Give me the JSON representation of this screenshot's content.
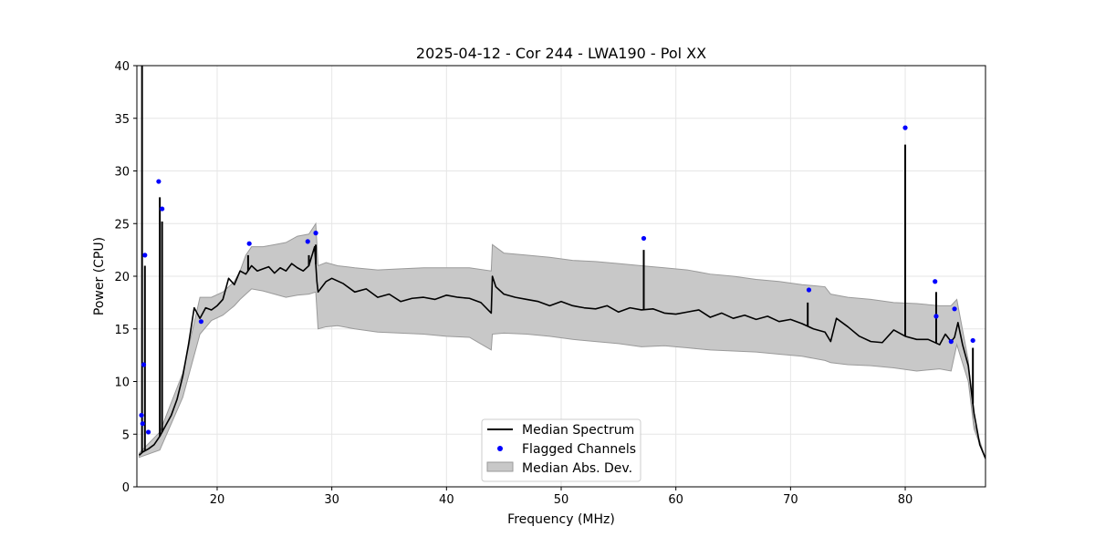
{
  "chart_data": {
    "type": "line",
    "title": "2025-04-12 - Cor 244 - LWA190 - Pol XX",
    "xlabel": "Frequency (MHz)",
    "ylabel": "Power (CPU)",
    "xlim": [
      13,
      87
    ],
    "ylim": [
      0,
      40
    ],
    "xticks": [
      20,
      30,
      40,
      50,
      60,
      70,
      80
    ],
    "yticks": [
      0,
      5,
      10,
      15,
      20,
      25,
      30,
      35,
      40
    ],
    "grid": true,
    "legend_position": "lower-center",
    "colors": {
      "median": "#000000",
      "flagged": "#0000ff",
      "mad_fill": "#c8c8c8",
      "mad_edge": "#9a9a9a"
    },
    "legend": [
      {
        "label": "Median Spectrum",
        "kind": "line"
      },
      {
        "label": "Flagged Channels",
        "kind": "marker"
      },
      {
        "label": "Median Abs. Dev.",
        "kind": "patch"
      }
    ],
    "series": [
      {
        "name": "Median Spectrum",
        "x": [
          13.2,
          13.5,
          14.0,
          14.5,
          15.0,
          15.5,
          16.0,
          16.5,
          17.0,
          17.5,
          18.0,
          18.5,
          19.0,
          19.5,
          20.0,
          20.5,
          21.0,
          21.5,
          22.0,
          22.5,
          23.0,
          23.5,
          24.0,
          24.5,
          25.0,
          25.5,
          26.0,
          26.5,
          27.0,
          27.5,
          28.0,
          28.5,
          28.7,
          28.8,
          29.5,
          30.0,
          31.0,
          32.0,
          33.0,
          34.0,
          35.0,
          36.0,
          37.0,
          38.0,
          39.0,
          40.0,
          41.0,
          42.0,
          43.0,
          43.9,
          44.0,
          44.3,
          45.0,
          46.0,
          47.0,
          48.0,
          49.0,
          50.0,
          51.0,
          52.0,
          53.0,
          54.0,
          55.0,
          56.0,
          57.0,
          58.0,
          59.0,
          60.0,
          61.0,
          62.0,
          63.0,
          64.0,
          65.0,
          66.0,
          67.0,
          68.0,
          69.0,
          70.0,
          71.0,
          72.0,
          73.0,
          73.5,
          74.0,
          75.0,
          76.0,
          77.0,
          78.0,
          79.0,
          80.0,
          81.0,
          82.0,
          83.0,
          83.5,
          84.0,
          84.3,
          84.6,
          85.0,
          85.5,
          86.0,
          86.5,
          87.0
        ],
        "values": [
          3.0,
          3.3,
          3.6,
          4.0,
          4.8,
          5.8,
          6.8,
          8.3,
          10.5,
          13.5,
          17.0,
          16.0,
          17.0,
          16.8,
          17.2,
          17.8,
          19.8,
          19.2,
          20.5,
          20.2,
          21.0,
          20.5,
          20.7,
          20.9,
          20.3,
          20.8,
          20.5,
          21.2,
          20.8,
          20.5,
          21.0,
          22.8,
          19.5,
          18.5,
          19.5,
          19.8,
          19.3,
          18.5,
          18.8,
          18.0,
          18.3,
          17.6,
          17.9,
          18.0,
          17.8,
          18.2,
          18.0,
          17.9,
          17.5,
          16.5,
          20.0,
          19.0,
          18.3,
          18.0,
          17.8,
          17.6,
          17.2,
          17.6,
          17.2,
          17.0,
          16.9,
          17.2,
          16.6,
          17.0,
          16.8,
          16.9,
          16.5,
          16.4,
          16.6,
          16.8,
          16.1,
          16.5,
          16.0,
          16.3,
          15.9,
          16.2,
          15.7,
          15.9,
          15.5,
          15.0,
          14.7,
          13.8,
          16.0,
          15.2,
          14.3,
          13.8,
          13.7,
          14.9,
          14.3,
          14.0,
          14.0,
          13.5,
          14.5,
          13.8,
          14.2,
          15.6,
          13.5,
          11.5,
          7.0,
          4.0,
          2.7
        ],
        "spikes": [
          [
            13.45,
            40.0
          ],
          [
            13.7,
            21.0
          ],
          [
            15.0,
            27.5
          ],
          [
            15.2,
            25.2
          ],
          [
            22.7,
            22.0
          ],
          [
            28.0,
            22.0
          ],
          [
            28.6,
            23.0
          ],
          [
            57.2,
            22.5
          ],
          [
            71.5,
            17.5
          ],
          [
            80.0,
            32.5
          ],
          [
            82.7,
            18.5
          ],
          [
            85.9,
            13.2
          ]
        ]
      },
      {
        "name": "Flagged Channels",
        "x": [
          13.4,
          13.5,
          13.6,
          13.7,
          14.0,
          14.9,
          15.2,
          18.6,
          22.8,
          27.9,
          28.6,
          57.2,
          71.6,
          80.0,
          82.6,
          82.7,
          84.0,
          84.3,
          85.9
        ],
        "values": [
          6.8,
          6.0,
          11.6,
          22.0,
          5.2,
          29.0,
          26.4,
          15.7,
          23.1,
          23.3,
          24.1,
          23.6,
          18.7,
          34.1,
          19.5,
          16.2,
          13.8,
          16.9,
          13.9
        ]
      },
      {
        "name": "Median Abs. Dev.",
        "x": [
          13.2,
          15.0,
          17.0,
          18.5,
          19.5,
          20.5,
          21.5,
          22.0,
          22.5,
          23.0,
          24.0,
          25.0,
          26.0,
          27.0,
          28.0,
          28.6,
          28.8,
          29.5,
          30.5,
          32.0,
          34.0,
          36.0,
          38.0,
          40.0,
          42.0,
          43.9,
          44.0,
          45.0,
          47.0,
          49.0,
          51.0,
          53.0,
          55.0,
          57.0,
          59.0,
          61.0,
          63.0,
          65.0,
          67.0,
          69.0,
          71.0,
          73.0,
          73.5,
          75.0,
          77.0,
          79.0,
          81.0,
          83.0,
          84.0,
          84.5,
          85.5,
          86.0,
          87.0
        ],
        "upper": [
          3.2,
          5.2,
          10.8,
          18.0,
          18.0,
          18.5,
          19.5,
          20.5,
          22.0,
          22.8,
          22.8,
          23.0,
          23.2,
          23.8,
          24.0,
          25.0,
          21.0,
          21.3,
          21.0,
          20.8,
          20.6,
          20.7,
          20.8,
          20.8,
          20.8,
          20.5,
          23.0,
          22.2,
          22.0,
          21.8,
          21.5,
          21.4,
          21.2,
          21.0,
          20.8,
          20.6,
          20.2,
          20.0,
          19.7,
          19.5,
          19.2,
          19.0,
          18.3,
          18.0,
          17.8,
          17.5,
          17.4,
          17.2,
          17.2,
          17.8,
          12.0,
          6.0,
          2.7
        ],
        "lower": [
          2.8,
          3.5,
          8.5,
          14.5,
          15.8,
          16.3,
          17.2,
          17.8,
          18.3,
          18.8,
          18.6,
          18.3,
          18.0,
          18.2,
          18.3,
          18.5,
          15.0,
          15.2,
          15.3,
          15.0,
          14.7,
          14.6,
          14.5,
          14.3,
          14.2,
          13.0,
          14.5,
          14.6,
          14.5,
          14.3,
          14.0,
          13.8,
          13.6,
          13.3,
          13.4,
          13.2,
          13.0,
          12.9,
          12.8,
          12.6,
          12.4,
          12.0,
          11.8,
          11.6,
          11.5,
          11.3,
          11.0,
          11.2,
          11.0,
          13.5,
          10.0,
          5.5,
          2.6
        ]
      }
    ]
  }
}
